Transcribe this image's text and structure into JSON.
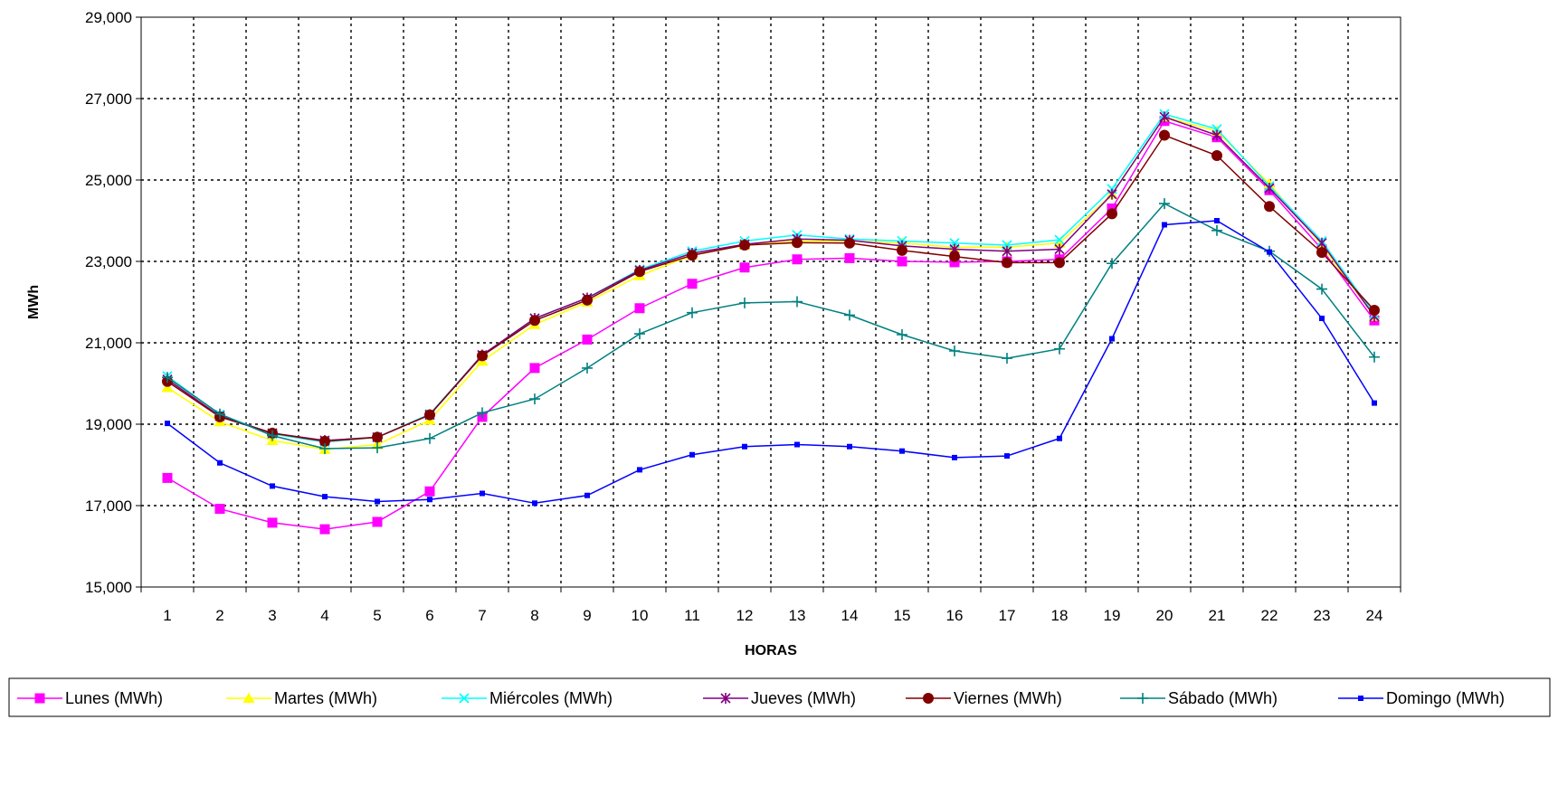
{
  "chart_data": {
    "type": "line",
    "xlabel": "HORAS",
    "ylabel": "MWh",
    "ylim": [
      15000,
      29000
    ],
    "yticks": [
      15000,
      17000,
      19000,
      21000,
      23000,
      25000,
      27000,
      29000
    ],
    "ytick_labels": [
      "15,000",
      "17,000",
      "19,000",
      "21,000",
      "23,000",
      "25,000",
      "27,000",
      "29,000"
    ],
    "grid": true,
    "legend_position": "bottom",
    "x": [
      1,
      2,
      3,
      4,
      5,
      6,
      7,
      8,
      9,
      10,
      11,
      12,
      13,
      14,
      15,
      16,
      17,
      18,
      19,
      20,
      21,
      22,
      23,
      24
    ],
    "series": [
      {
        "name": "Lunes (MWh)",
        "color": "#ff00ff",
        "marker": "square",
        "values": [
          17680,
          16920,
          16580,
          16420,
          16600,
          17350,
          19180,
          20380,
          21080,
          21850,
          22450,
          22850,
          23050,
          23080,
          23000,
          22980,
          23000,
          23050,
          24300,
          26450,
          26050,
          24750,
          23300,
          21550
        ]
      },
      {
        "name": "Martes (MWh)",
        "color": "#ffff00",
        "marker": "triangle",
        "values": [
          19900,
          19060,
          18600,
          18380,
          18500,
          19100,
          20550,
          21450,
          22000,
          22650,
          23150,
          23400,
          23500,
          23500,
          23450,
          23350,
          23350,
          23450,
          24650,
          26550,
          26200,
          24900,
          23400,
          21650
        ]
      },
      {
        "name": "Miércoles (MWh)",
        "color": "#00ffff",
        "marker": "x",
        "values": [
          20180,
          19240,
          18760,
          18560,
          18680,
          19250,
          20700,
          21600,
          22100,
          22800,
          23250,
          23500,
          23650,
          23550,
          23500,
          23450,
          23400,
          23530,
          24780,
          26620,
          26250,
          24850,
          23500,
          21700
        ]
      },
      {
        "name": "Jueves (MWh)",
        "color": "#800080",
        "marker": "star",
        "values": [
          20100,
          19200,
          18780,
          18600,
          18680,
          19230,
          20700,
          21600,
          22100,
          22780,
          23200,
          23420,
          23550,
          23520,
          23380,
          23300,
          23250,
          23300,
          24650,
          26550,
          26100,
          24800,
          23450,
          21650
        ]
      },
      {
        "name": "Viernes (MWh)",
        "color": "#800000",
        "marker": "circle",
        "values": [
          20050,
          19180,
          18780,
          18580,
          18680,
          19230,
          20680,
          21550,
          22050,
          22750,
          23150,
          23400,
          23460,
          23450,
          23270,
          23120,
          22970,
          22970,
          24170,
          26100,
          25600,
          24350,
          23220,
          21800
        ]
      },
      {
        "name": "Sábado (MWh)",
        "color": "#008080",
        "marker": "plus",
        "values": [
          20150,
          19250,
          18720,
          18400,
          18420,
          18650,
          19280,
          19620,
          20380,
          21220,
          21740,
          21980,
          22010,
          21680,
          21200,
          20800,
          20620,
          20850,
          22950,
          24420,
          23760,
          23250,
          22320,
          20650
        ]
      },
      {
        "name": "Domingo (MWh)",
        "color": "#0000ff",
        "marker": "smallsquare",
        "values": [
          19020,
          18050,
          17480,
          17220,
          17100,
          17150,
          17300,
          17060,
          17250,
          17880,
          18250,
          18450,
          18500,
          18450,
          18340,
          18180,
          18220,
          18650,
          21100,
          23900,
          24000,
          23230,
          21600,
          19520
        ]
      }
    ]
  }
}
